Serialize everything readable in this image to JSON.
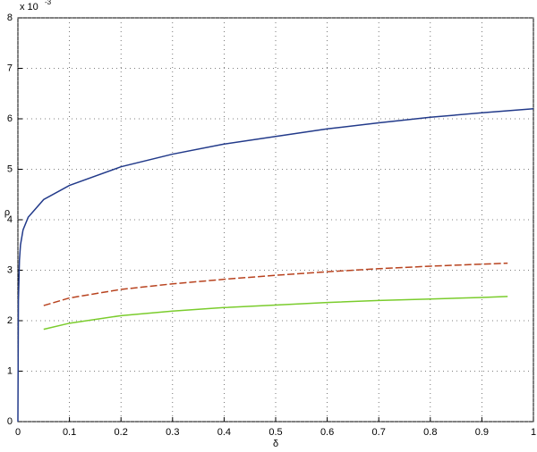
{
  "chart_data": {
    "type": "line",
    "axis_multiplier": "x 10",
    "axis_exponent": "-3",
    "x_label": "δ",
    "y_label": "ρ",
    "xlim": [
      0,
      1
    ],
    "ylim": [
      0,
      8
    ],
    "xticks": [
      0,
      0.1,
      0.2,
      0.3,
      0.4,
      0.5,
      0.6,
      0.7,
      0.8,
      0.9,
      1
    ],
    "yticks": [
      0,
      1,
      2,
      3,
      4,
      5,
      6,
      7,
      8
    ],
    "grid": true,
    "series": [
      {
        "color": "#223a8a",
        "linestyle": "solid",
        "x": [
          0,
          0.001,
          0.003,
          0.005,
          0.01,
          0.02,
          0.05,
          0.1,
          0.2,
          0.3,
          0.4,
          0.5,
          0.6,
          0.7,
          0.8,
          0.9,
          1
        ],
        "values": [
          0,
          2.4,
          3.2,
          3.5,
          3.8,
          4.05,
          4.4,
          4.68,
          5.05,
          5.3,
          5.5,
          5.65,
          5.8,
          5.92,
          6.03,
          6.12,
          6.2
        ]
      },
      {
        "color": "#b8431f",
        "linestyle": "dashed",
        "x": [
          0.05,
          0.1,
          0.2,
          0.3,
          0.4,
          0.5,
          0.6,
          0.7,
          0.8,
          0.9,
          0.95
        ],
        "values": [
          2.3,
          2.45,
          2.62,
          2.73,
          2.82,
          2.9,
          2.97,
          3.03,
          3.08,
          3.12,
          3.14
        ]
      },
      {
        "color": "#7acc2c",
        "linestyle": "solid",
        "x": [
          0.05,
          0.1,
          0.2,
          0.3,
          0.4,
          0.5,
          0.6,
          0.7,
          0.8,
          0.9,
          0.95
        ],
        "values": [
          1.83,
          1.95,
          2.1,
          2.19,
          2.26,
          2.31,
          2.36,
          2.4,
          2.43,
          2.46,
          2.48
        ]
      }
    ]
  }
}
